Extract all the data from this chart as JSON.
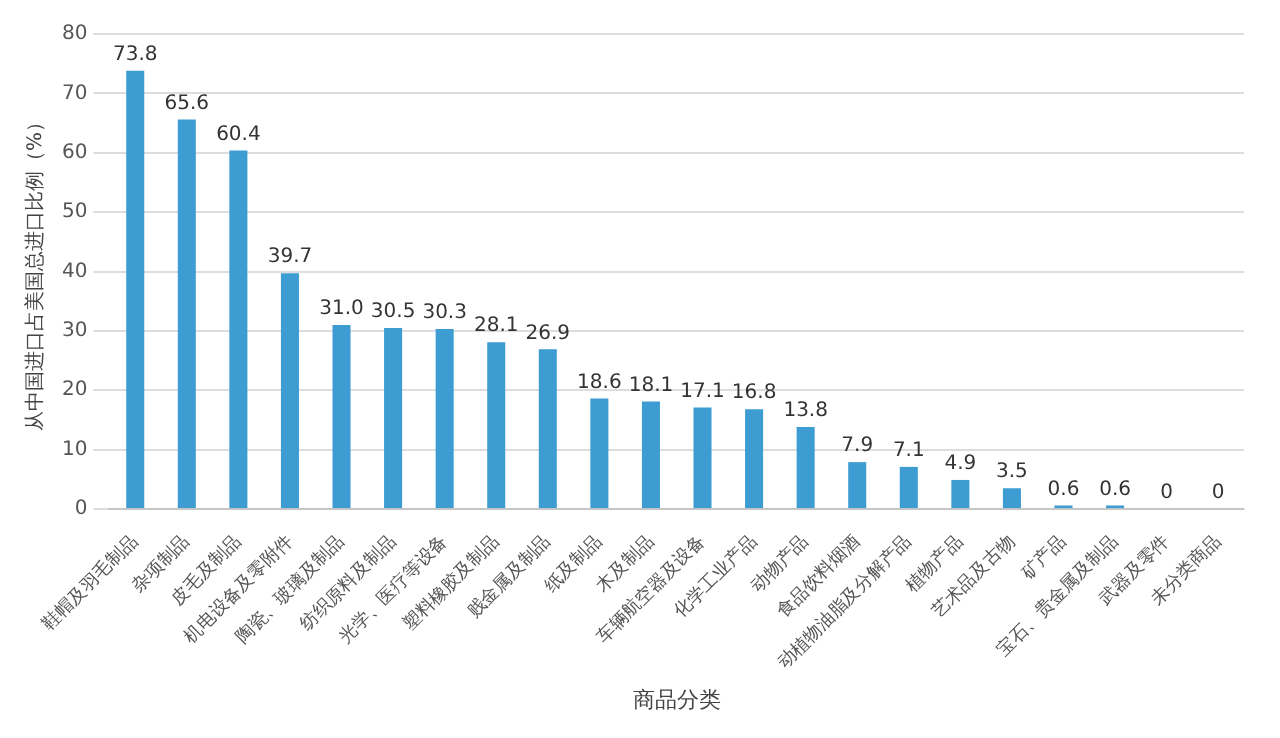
{
  "chart_data": {
    "type": "bar",
    "xlabel": "商品分类",
    "ylabel": "从中国进口占美国总进口比例（%）",
    "categories": [
      "鞋帽及羽毛制品",
      "杂项制品",
      "皮毛及制品",
      "机电设备及零附件",
      "陶瓷、玻璃及制品",
      "纺织原料及制品",
      "光学、医疗等设备",
      "塑料橡胶及制品",
      "贱金属及制品",
      "纸及制品",
      "木及制品",
      "车辆航空器及设备",
      "化学工业产品",
      "动物产品",
      "食品饮料烟酒",
      "动植物油脂及分解产品",
      "植物产品",
      "艺术品及古物",
      "矿产品",
      "宝石、贵金属及制品",
      "武器及零件",
      "未分类商品"
    ],
    "values": [
      73.8,
      65.6,
      60.4,
      39.7,
      31.0,
      30.5,
      30.3,
      28.1,
      26.9,
      18.6,
      18.1,
      17.1,
      16.8,
      13.8,
      7.9,
      7.1,
      4.9,
      3.5,
      0.6,
      0.6,
      0,
      0
    ],
    "color": "#3d9dd3",
    "ylim": [
      0,
      80
    ],
    "yticks": [
      0,
      10,
      20,
      30,
      40,
      50,
      60,
      70,
      80
    ],
    "grid": "y",
    "value_labels": [
      "73.8",
      "65.6",
      "60.4",
      "39.7",
      "31.0",
      "30.5",
      "30.3",
      "28.1",
      "26.9",
      "18.6",
      "18.1",
      "17.1",
      "16.8",
      "13.8",
      "7.9",
      "7.1",
      "4.9",
      "3.5",
      "0.6",
      "0.6",
      "0",
      "0"
    ],
    "legend": false
  }
}
